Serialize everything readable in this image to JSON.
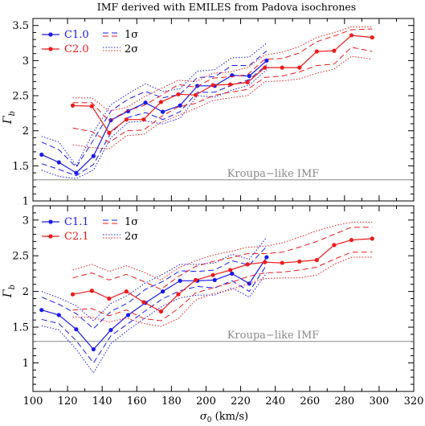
{
  "chart_data": [
    {
      "type": "line",
      "title": "IMF derived with EMILES from Padova isochrones",
      "xlabel": "",
      "ylabel": "Γ_b",
      "ylabel_text": "Γ",
      "ylabel_sub": "b",
      "xlim": [
        100,
        320
      ],
      "ylim": [
        1,
        3.6
      ],
      "y_ticks": [
        1,
        1.5,
        2,
        2.5,
        3,
        3.5
      ],
      "y_tick_labels": [
        "1",
        "1.5",
        "2",
        "2.5",
        "3",
        "3.5"
      ],
      "reference_line": {
        "y": 1.3,
        "label": "Kroupa−like IMF",
        "color": "#888888"
      },
      "legend": {
        "position": "top-left",
        "items": [
          "C1.0",
          "C2.0"
        ],
        "band_items": [
          "1σ",
          "2σ"
        ]
      },
      "series": [
        {
          "name": "C1.0",
          "color": "#1a1aee",
          "x": [
            105,
            115,
            125,
            135,
            145,
            155,
            165,
            175,
            185,
            195,
            205,
            215,
            225,
            235
          ],
          "values": [
            1.66,
            1.55,
            1.4,
            1.64,
            2.15,
            2.28,
            2.4,
            2.27,
            2.36,
            2.64,
            2.64,
            2.79,
            2.78,
            3.0
          ],
          "sigma1_upper": [
            1.84,
            1.73,
            1.48,
            1.87,
            2.28,
            2.45,
            2.56,
            2.47,
            2.52,
            2.76,
            2.77,
            2.93,
            2.93,
            3.14
          ],
          "sigma1_lower": [
            1.53,
            1.45,
            1.36,
            1.52,
            1.97,
            2.19,
            2.26,
            2.16,
            2.27,
            2.55,
            2.55,
            2.65,
            2.73,
            2.94
          ],
          "sigma2_upper": [
            1.92,
            1.84,
            1.5,
            1.98,
            2.37,
            2.53,
            2.67,
            2.56,
            2.6,
            2.85,
            2.87,
            3.04,
            3.05,
            3.25
          ],
          "sigma2_lower": [
            1.44,
            1.35,
            1.32,
            1.44,
            1.9,
            2.12,
            2.14,
            2.1,
            2.18,
            2.5,
            2.48,
            2.58,
            2.65,
            2.87
          ]
        },
        {
          "name": "C2.0",
          "color": "#ee1a1a",
          "x": [
            123,
            134,
            144,
            154,
            164,
            174,
            184,
            194,
            204,
            214,
            224,
            234,
            244,
            254,
            264,
            274,
            284,
            296
          ],
          "values": [
            2.36,
            2.35,
            1.97,
            2.16,
            2.16,
            2.41,
            2.52,
            2.51,
            2.65,
            2.66,
            2.69,
            2.9,
            2.9,
            2.9,
            3.13,
            3.14,
            3.36,
            3.33
          ],
          "sigma1_upper": [
            2.4,
            2.4,
            2.14,
            2.28,
            2.36,
            2.5,
            2.66,
            2.62,
            2.75,
            2.77,
            2.8,
            3.02,
            3.03,
            3.11,
            3.27,
            3.35,
            3.44,
            3.45
          ],
          "sigma1_lower": [
            2.04,
            1.99,
            1.83,
            2.0,
            2.01,
            2.2,
            2.34,
            2.39,
            2.5,
            2.55,
            2.59,
            2.76,
            2.78,
            2.84,
            2.93,
            2.95,
            3.19,
            3.13
          ],
          "sigma2_upper": [
            2.47,
            2.47,
            2.28,
            2.33,
            2.48,
            2.6,
            2.72,
            2.7,
            2.82,
            2.84,
            2.9,
            3.08,
            3.12,
            3.2,
            3.33,
            3.4,
            3.48,
            3.48
          ],
          "sigma2_lower": [
            1.8,
            1.76,
            1.74,
            1.93,
            1.95,
            2.12,
            2.22,
            2.32,
            2.43,
            2.47,
            2.5,
            2.7,
            2.71,
            2.74,
            2.82,
            2.88,
            3.06,
            3.02
          ]
        }
      ]
    },
    {
      "type": "line",
      "xlabel": "σ_0 (km/s)",
      "xlabel_sigma": "σ",
      "xlabel_sub": "0",
      "xlabel_unit": " (km/s)",
      "ylabel": "Γ_b",
      "ylabel_text": "Γ",
      "ylabel_sub": "b",
      "xlim": [
        100,
        320
      ],
      "ylim": [
        0.6,
        3.2
      ],
      "x_ticks": [
        100,
        120,
        140,
        160,
        180,
        200,
        220,
        240,
        260,
        280,
        300,
        320
      ],
      "x_tick_labels": [
        "100",
        "120",
        "140",
        "160",
        "180",
        "200",
        "220",
        "240",
        "260",
        "280",
        "300",
        "320"
      ],
      "y_ticks": [
        1,
        1.5,
        2,
        2.5,
        3
      ],
      "y_tick_labels": [
        "1",
        "1.5",
        "2",
        "2.5",
        "3"
      ],
      "reference_line": {
        "y": 1.3,
        "label": "Kroupa−like IMF",
        "color": "#888888"
      },
      "legend": {
        "position": "top-left",
        "items": [
          "C1.1",
          "C2.1"
        ],
        "band_items": [
          "1σ",
          "2σ"
        ]
      },
      "series": [
        {
          "name": "C1.1",
          "color": "#1a1aee",
          "x": [
            105,
            115,
            125,
            135,
            145,
            155,
            165,
            175,
            185,
            195,
            205,
            215,
            225,
            235
          ],
          "values": [
            1.74,
            1.67,
            1.47,
            1.19,
            1.46,
            1.67,
            1.84,
            2.0,
            2.15,
            2.15,
            2.16,
            2.25,
            2.11,
            2.48
          ],
          "sigma1_upper": [
            1.92,
            1.82,
            1.69,
            1.48,
            1.72,
            1.84,
            2.03,
            2.14,
            2.29,
            2.28,
            2.3,
            2.43,
            2.37,
            2.63
          ],
          "sigma1_lower": [
            1.61,
            1.55,
            1.31,
            1.0,
            1.38,
            1.55,
            1.73,
            1.9,
            2.01,
            2.07,
            2.05,
            2.15,
            2.0,
            2.37
          ],
          "sigma2_upper": [
            2.0,
            1.91,
            1.8,
            1.59,
            1.83,
            1.95,
            2.12,
            2.24,
            2.38,
            2.38,
            2.4,
            2.52,
            2.45,
            2.76
          ],
          "sigma2_lower": [
            1.52,
            1.46,
            1.19,
            0.86,
            1.27,
            1.46,
            1.63,
            1.8,
            1.91,
            1.95,
            1.95,
            2.05,
            1.92,
            2.26
          ]
        },
        {
          "name": "C2.1",
          "color": "#ee1a1a",
          "x": [
            123,
            134,
            144,
            154,
            164,
            174,
            184,
            194,
            204,
            214,
            224,
            234,
            244,
            254,
            264,
            274,
            284,
            296
          ],
          "values": [
            1.96,
            2.01,
            1.9,
            2.0,
            1.85,
            1.72,
            1.96,
            2.16,
            2.23,
            2.3,
            2.38,
            2.41,
            2.4,
            2.42,
            2.44,
            2.65,
            2.72,
            2.74
          ],
          "sigma1_upper": [
            2.19,
            2.26,
            2.16,
            2.24,
            2.14,
            2.03,
            2.21,
            2.35,
            2.42,
            2.47,
            2.53,
            2.53,
            2.55,
            2.62,
            2.7,
            2.8,
            2.9,
            2.9
          ],
          "sigma1_lower": [
            1.74,
            1.76,
            1.66,
            1.74,
            1.62,
            1.59,
            1.76,
            1.98,
            2.05,
            2.12,
            2.21,
            2.26,
            2.27,
            2.3,
            2.34,
            2.45,
            2.55,
            2.55
          ],
          "sigma2_upper": [
            2.3,
            2.38,
            2.28,
            2.36,
            2.27,
            2.16,
            2.33,
            2.43,
            2.51,
            2.56,
            2.62,
            2.63,
            2.68,
            2.76,
            2.85,
            2.92,
            2.97,
            2.97
          ],
          "sigma2_lower": [
            1.64,
            1.64,
            1.57,
            1.63,
            1.55,
            1.51,
            1.62,
            1.88,
            1.97,
            2.02,
            2.11,
            2.18,
            2.19,
            2.19,
            2.23,
            2.38,
            2.48,
            2.48
          ]
        }
      ]
    }
  ]
}
